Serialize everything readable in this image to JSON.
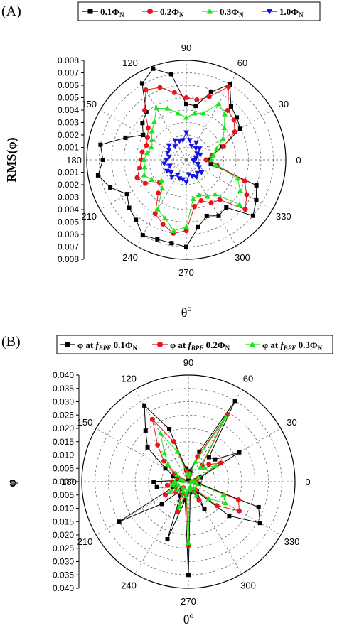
{
  "panels": [
    {
      "id": "A",
      "panel_label": "(A)",
      "legend": [
        {
          "base": "0.1",
          "sym": "Φ",
          "sub": "N",
          "color": "#000000",
          "marker": "square"
        },
        {
          "base": "0.2",
          "sym": "Φ",
          "sub": "N",
          "color": "#e8141b",
          "marker": "circle"
        },
        {
          "base": "0.3",
          "sym": "Φ",
          "sub": "N",
          "color": "#19e619",
          "marker": "triangle-up"
        },
        {
          "base": "1.0",
          "sym": "Φ",
          "sub": "N",
          "color": "#1414e6",
          "marker": "triangle-down"
        }
      ],
      "ylabel": "RMS(φ)",
      "xlabel_base": "θ",
      "xlabel_sup": "o",
      "radial_ticks": [
        "0.008",
        "0.007",
        "0.006",
        "0.005",
        "0.004",
        "0.003",
        "0.002",
        "0.001"
      ],
      "radial_ticks_lower": [
        "0.001",
        "0.002",
        "0.003",
        "0.004",
        "0.005",
        "0.006",
        "0.007",
        "0.008"
      ],
      "angle_labels": [
        "0",
        "30",
        "60",
        "90",
        "120",
        "150",
        "180",
        "210",
        "240",
        "270",
        "300",
        "330"
      ]
    },
    {
      "id": "B",
      "panel_label": "(B)",
      "legend": [
        {
          "pre": "φ at ",
          "f": "f",
          "fsub": "BPF",
          "base": " 0.1",
          "sym": "Φ",
          "sub": "N",
          "color": "#000000",
          "marker": "square"
        },
        {
          "pre": "φ at ",
          "f": "f",
          "fsub": "BPF",
          "base": " 0.2",
          "sym": "Φ",
          "sub": "N",
          "color": "#e8141b",
          "marker": "circle"
        },
        {
          "pre": "φ at ",
          "f": "f",
          "fsub": "BPF",
          "base": " 0.3",
          "sym": "Φ",
          "sub": "N",
          "color": "#19e619",
          "marker": "triangle-up"
        }
      ],
      "ylabel": "φ",
      "xlabel_base": "θ",
      "xlabel_sup": "o",
      "radial_ticks": [
        "0.040",
        "0.035",
        "0.030",
        "0.025",
        "0.020",
        "0.015",
        "0.010",
        "0.005",
        "0.000"
      ],
      "radial_ticks_lower": [
        "0.005",
        "0.010",
        "0.015",
        "0.020",
        "0.025",
        "0.030",
        "0.035",
        "0.040"
      ],
      "angle_labels": [
        "0",
        "30",
        "60",
        "90",
        "120",
        "150",
        "180",
        "210",
        "240",
        "270",
        "300",
        "330"
      ]
    }
  ],
  "chart_data": [
    {
      "type": "polar-line",
      "panel": "A",
      "rlim": [
        0,
        0.008
      ],
      "theta_unit": "deg",
      "grid": true,
      "legend_placement": "top",
      "series": [
        {
          "name_ref": "panels.0.legend.0",
          "color": "#000000",
          "marker": "square",
          "theta": [
            0,
            10,
            20,
            30,
            40,
            50,
            60,
            70,
            80,
            90,
            100,
            110,
            120,
            130,
            140,
            150,
            160,
            170,
            180,
            190,
            200,
            210,
            220,
            230,
            240,
            250,
            260,
            270,
            280,
            290,
            300,
            310,
            320,
            330,
            340,
            350
          ],
          "r": [
            0.0019,
            0.0021,
            0.0031,
            0.005,
            0.0053,
            0.0056,
            0.007,
            0.0058,
            0.0044,
            0.0045,
            0.007,
            0.0078,
            0.0071,
            0.005,
            0.0046,
            0.004,
            0.0052,
            0.007,
            0.0067,
            0.0072,
            0.0065,
            0.0055,
            0.006,
            0.0063,
            0.007,
            0.0068,
            0.0068,
            0.007,
            0.0055,
            0.0048,
            0.0052,
            0.005,
            0.007,
            0.0065,
            0.006,
            0.002
          ]
        },
        {
          "name_ref": "panels.0.legend.1",
          "color": "#e8141b",
          "marker": "circle",
          "theta": [
            0,
            10,
            20,
            30,
            40,
            50,
            60,
            70,
            80,
            90,
            100,
            110,
            120,
            130,
            140,
            150,
            160,
            170,
            180,
            190,
            200,
            210,
            220,
            230,
            240,
            250,
            260,
            270,
            280,
            290,
            300,
            310,
            320,
            330,
            340,
            350
          ],
          "r": [
            0.0016,
            0.0021,
            0.0032,
            0.0045,
            0.005,
            0.0052,
            0.0068,
            0.0054,
            0.0049,
            0.005,
            0.0055,
            0.0062,
            0.0065,
            0.0052,
            0.004,
            0.0036,
            0.0034,
            0.0036,
            0.0036,
            0.0038,
            0.0042,
            0.0038,
            0.0028,
            0.0035,
            0.005,
            0.0055,
            0.006,
            0.0057,
            0.0038,
            0.0035,
            0.004,
            0.0042,
            0.0062,
            0.0056,
            0.005,
            0.0025
          ]
        },
        {
          "name_ref": "panels.0.legend.2",
          "color": "#19e619",
          "marker": "triangle-up",
          "theta": [
            0,
            10,
            20,
            30,
            40,
            50,
            60,
            70,
            80,
            90,
            100,
            110,
            120,
            130,
            140,
            150,
            160,
            170,
            180,
            190,
            200,
            210,
            220,
            230,
            240,
            250,
            260,
            270,
            280,
            290,
            300,
            310,
            320,
            330,
            340,
            350
          ],
          "r": [
            0.002,
            0.0022,
            0.0026,
            0.0034,
            0.004,
            0.0048,
            0.0052,
            0.004,
            0.0038,
            0.0034,
            0.0038,
            0.0044,
            0.0048,
            0.004,
            0.0036,
            0.0032,
            0.003,
            0.0032,
            0.0034,
            0.0034,
            0.0036,
            0.0032,
            0.0026,
            0.003,
            0.0046,
            0.005,
            0.0058,
            0.0054,
            0.0032,
            0.003,
            0.0034,
            0.0036,
            0.0056,
            0.005,
            0.0044,
            0.0024
          ]
        },
        {
          "name_ref": "panels.0.legend.3",
          "color": "#1414e6",
          "marker": "triangle-down",
          "theta": [
            0,
            10,
            20,
            30,
            40,
            50,
            60,
            70,
            80,
            90,
            100,
            110,
            120,
            130,
            140,
            150,
            160,
            170,
            180,
            190,
            200,
            210,
            220,
            230,
            240,
            250,
            260,
            270,
            280,
            290,
            300,
            310,
            320,
            330,
            340,
            350
          ],
          "r": [
            0.0006,
            0.0008,
            0.0012,
            0.001,
            0.0014,
            0.0012,
            0.0016,
            0.0012,
            0.0016,
            0.0022,
            0.0016,
            0.0016,
            0.0018,
            0.0014,
            0.0018,
            0.0016,
            0.0016,
            0.0014,
            0.0016,
            0.0018,
            0.0014,
            0.0018,
            0.0016,
            0.0018,
            0.0014,
            0.0016,
            0.0016,
            0.0018,
            0.0012,
            0.0014,
            0.0016,
            0.0014,
            0.0016,
            0.0012,
            0.001,
            0.0006
          ]
        }
      ]
    },
    {
      "type": "polar-line",
      "panel": "B",
      "rlim": [
        0,
        0.04
      ],
      "theta_unit": "deg",
      "grid": true,
      "legend_placement": "top",
      "series": [
        {
          "name_ref": "panels.1.legend.0",
          "color": "#000000",
          "marker": "square",
          "theta": [
            0,
            10,
            20,
            30,
            40,
            50,
            60,
            70,
            80,
            90,
            100,
            110,
            120,
            130,
            140,
            150,
            160,
            170,
            180,
            190,
            200,
            210,
            220,
            230,
            240,
            250,
            260,
            270,
            280,
            290,
            300,
            310,
            320,
            330,
            340,
            350
          ],
          "r": [
            0.001,
            0.003,
            0.005,
            0.022,
            0.013,
            0.012,
            0.035,
            0.012,
            0.004,
            0.001,
            0.005,
            0.021,
            0.033,
            0.025,
            0.02,
            0.01,
            0.006,
            0.003,
            0.013,
            0.012,
            0.006,
            0.03,
            0.013,
            0.004,
            0.006,
            0.023,
            0.007,
            0.035,
            0.004,
            0.003,
            0.012,
            0.005,
            0.02,
            0.031,
            0.028,
            0.004
          ]
        },
        {
          "name_ref": "panels.1.legend.1",
          "color": "#e8141b",
          "marker": "circle",
          "theta": [
            0,
            10,
            20,
            30,
            40,
            50,
            60,
            70,
            80,
            90,
            100,
            110,
            120,
            130,
            140,
            150,
            160,
            170,
            180,
            190,
            200,
            210,
            220,
            230,
            240,
            250,
            260,
            270,
            280,
            290,
            300,
            310,
            320,
            330,
            340,
            350
          ],
          "r": [
            0.001,
            0.003,
            0.004,
            0.014,
            0.01,
            0.008,
            0.029,
            0.01,
            0.003,
            0.002,
            0.004,
            0.016,
            0.027,
            0.018,
            0.012,
            0.006,
            0.004,
            0.002,
            0.006,
            0.008,
            0.005,
            0.01,
            0.006,
            0.003,
            0.005,
            0.012,
            0.005,
            0.024,
            0.003,
            0.003,
            0.008,
            0.004,
            0.014,
            0.022,
            0.02,
            0.003
          ]
        },
        {
          "name_ref": "panels.1.legend.2",
          "color": "#19e619",
          "marker": "triangle-up",
          "theta": [
            0,
            10,
            20,
            30,
            40,
            50,
            60,
            70,
            80,
            90,
            100,
            110,
            120,
            130,
            140,
            150,
            160,
            170,
            180,
            190,
            200,
            210,
            220,
            230,
            240,
            250,
            260,
            270,
            280,
            290,
            300,
            310,
            320,
            330,
            340,
            350
          ],
          "r": [
            0.001,
            0.002,
            0.004,
            0.012,
            0.008,
            0.007,
            0.028,
            0.008,
            0.003,
            0.002,
            0.003,
            0.012,
            0.021,
            0.014,
            0.01,
            0.005,
            0.003,
            0.002,
            0.005,
            0.006,
            0.004,
            0.008,
            0.005,
            0.003,
            0.004,
            0.01,
            0.004,
            0.023,
            0.003,
            0.002,
            0.006,
            0.003,
            0.01,
            0.016,
            0.014,
            0.003
          ]
        }
      ]
    }
  ]
}
